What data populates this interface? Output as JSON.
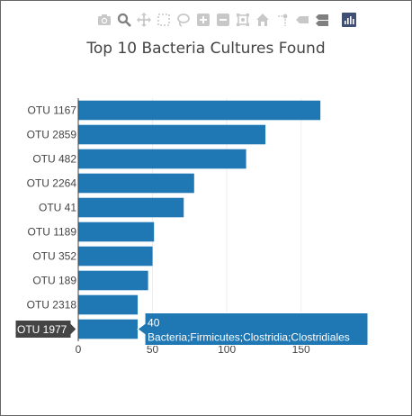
{
  "modebar": {
    "icons": [
      "camera-icon",
      "zoom-icon",
      "pan-icon",
      "box-select-icon",
      "lasso-icon",
      "zoom-in-icon",
      "zoom-out-icon",
      "autoscale-icon",
      "home-icon",
      "spike-lines-icon",
      "hover-closest-icon",
      "hover-compare-icon",
      "plotly-logo-icon"
    ],
    "icon_color": "#c8c8c8",
    "active_color": "#7f7f7f",
    "logo_color": "#3f4f75"
  },
  "chart_data": {
    "type": "bar",
    "orientation": "horizontal",
    "title": "Top 10 Bacteria Cultures Found",
    "categories": [
      "OTU 1167",
      "OTU 2859",
      "OTU 482",
      "OTU 2264",
      "OTU 41",
      "OTU 1189",
      "OTU 352",
      "OTU 189",
      "OTU 2318",
      "OTU 1977"
    ],
    "values": [
      163,
      126,
      113,
      78,
      71,
      51,
      50,
      47,
      40,
      40
    ],
    "xlim": [
      0,
      195
    ],
    "xticks": [
      0,
      50,
      100,
      150
    ],
    "grid": true,
    "bar_color": "#1f77b4",
    "hover": {
      "category": "OTU 1977",
      "value_text": "40",
      "label_text": "Bacteria;Firmicutes;Clostridia;Clostridiales"
    }
  }
}
